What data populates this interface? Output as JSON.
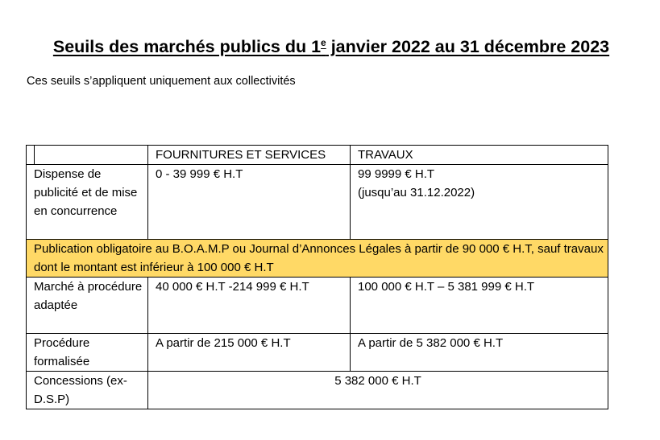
{
  "document": {
    "title_prefix": "Seuils des marchés publics du 1",
    "title_sup": "e",
    "title_suffix": " janvier 2022 au 31 décembre 2023",
    "subtitle": "Ces seuils s’appliquent uniquement aux collectivités"
  },
  "table": {
    "headers": {
      "fournitures": "FOURNITURES ET SERVICES",
      "travaux": "TRAVAUX"
    },
    "rows": {
      "dispense": {
        "label": "Dispense de publicité et de mise en concurrence",
        "fournitures": "0 - 39 999 € H.T",
        "travaux_line1": "99 9999 € H.T",
        "travaux_line2": "(jusqu’au 31.12.2022)"
      },
      "publication": {
        "text": "Publication obligatoire au B.O.A.M.P ou Journal d’Annonces Légales à partir de 90 000 € H.T, sauf travaux dont le montant est inférieur à 100 000 € H.T",
        "highlight_color": "#ffd966"
      },
      "mapa": {
        "label": "Marché à procédure adaptée",
        "fournitures": "40 000 € H.T -214 999 € H.T",
        "travaux": "100 000 € H.T – 5 381 999 € H.T"
      },
      "formalisee": {
        "label": "Procédure formalisée",
        "fournitures": "A partir de 215 000 € H.T",
        "travaux": "A partir de 5 382 000 € H.T"
      },
      "concessions": {
        "label": "Concessions (ex-D.S.P)",
        "value": "5 382 000 € H.T"
      }
    }
  }
}
